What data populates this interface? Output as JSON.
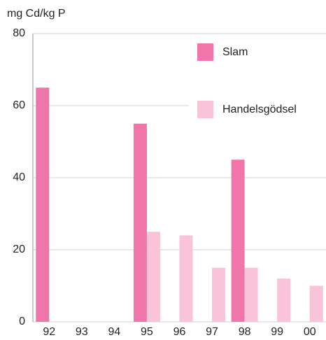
{
  "chart_data": {
    "type": "bar",
    "ylabel": "mg Cd/kg P",
    "categories": [
      "92",
      "93",
      "94",
      "95",
      "96",
      "97",
      "98",
      "99",
      "00"
    ],
    "series": [
      {
        "name": "Slam",
        "color": "#f075aa",
        "values": [
          65,
          null,
          null,
          55,
          null,
          null,
          45,
          null,
          null
        ]
      },
      {
        "name": "Handelsgödsel",
        "color": "#f9c3da",
        "values": [
          null,
          null,
          null,
          25,
          24,
          15,
          15,
          12,
          10
        ]
      }
    ],
    "ylim": [
      0,
      80
    ],
    "yticks": [
      0,
      20,
      40,
      60,
      80
    ],
    "grid": true,
    "legend": "upper right"
  }
}
